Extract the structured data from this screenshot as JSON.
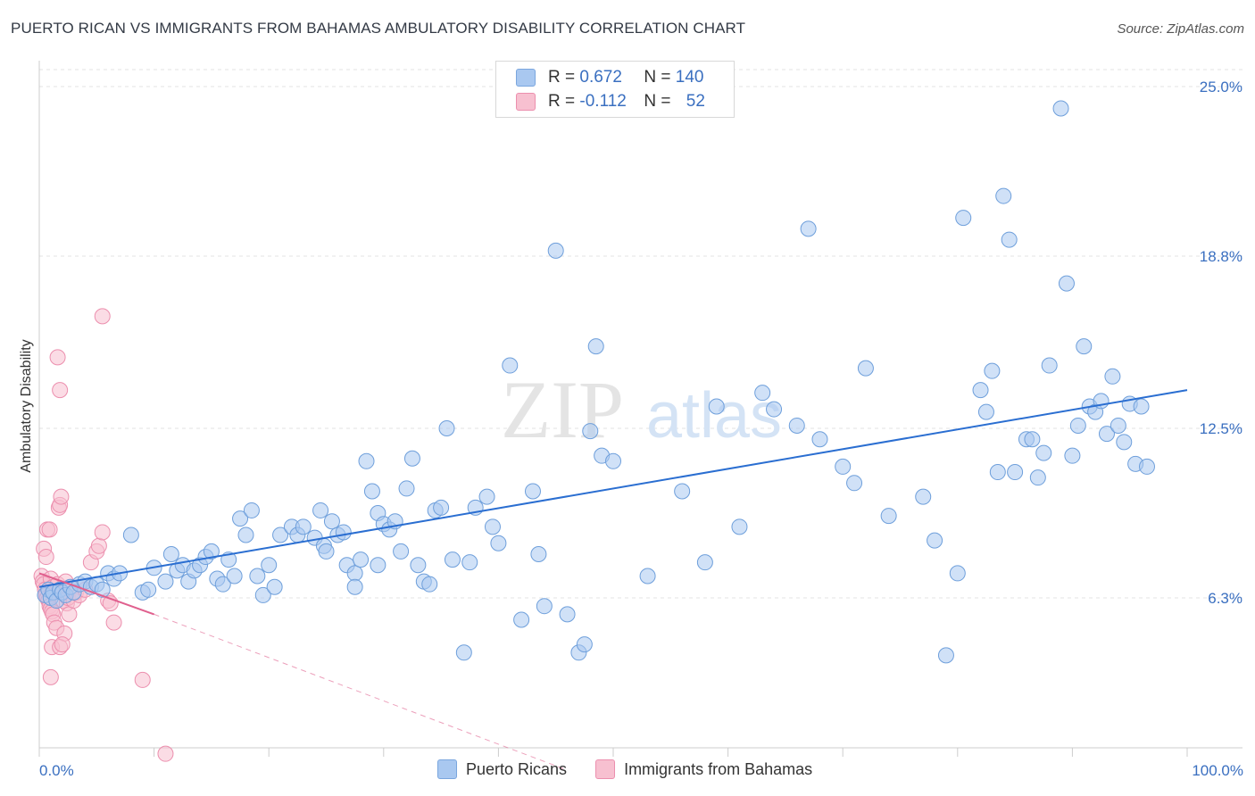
{
  "title": "PUERTO RICAN VS IMMIGRANTS FROM BAHAMAS AMBULATORY DISABILITY CORRELATION CHART",
  "source": "Source: ZipAtlas.com",
  "watermark": {
    "zip": "ZIP",
    "atlas": "atlas"
  },
  "legend_stats": [
    {
      "r_label": "R =",
      "r_value": "0.672",
      "n_label": "N =",
      "n_value": "140",
      "color": "#a9c8f0",
      "border": "#7aa6de"
    },
    {
      "r_label": "R =",
      "r_value": "-0.112",
      "n_label": "N =",
      "n_value": "52",
      "color": "#f7c0d0",
      "border": "#ec8fae"
    }
  ],
  "chart_data": {
    "type": "scatter",
    "title": "PUERTO RICAN VS IMMIGRANTS FROM BAHAMAS AMBULATORY DISABILITY CORRELATION CHART",
    "xlabel": "",
    "ylabel": "Ambulatory Disability",
    "xlim": [
      0,
      100
    ],
    "ylim": [
      0,
      26
    ],
    "x_tick_labels": [
      {
        "value": 0,
        "label": "0.0%"
      },
      {
        "value": 100,
        "label": "100.0%"
      }
    ],
    "y_ticks": [
      {
        "value": 6.3,
        "label": "6.3%"
      },
      {
        "value": 12.5,
        "label": "12.5%"
      },
      {
        "value": 18.8,
        "label": "18.8%"
      },
      {
        "value": 25.0,
        "label": "25.0%"
      }
    ],
    "grid": true,
    "series": [
      {
        "name": "Puerto Ricans",
        "color": "#a9c8f0",
        "stroke": "#6e9fdb",
        "trend": {
          "x0": 0.0,
          "y0": 6.7,
          "x1": 100.0,
          "y1": 13.9,
          "color": "#2a6ed1"
        },
        "points": [
          [
            0.5,
            6.4
          ],
          [
            0.8,
            6.6
          ],
          [
            1.0,
            6.3
          ],
          [
            1.2,
            6.5
          ],
          [
            1.5,
            6.2
          ],
          [
            1.8,
            6.6
          ],
          [
            2.0,
            6.5
          ],
          [
            2.3,
            6.4
          ],
          [
            2.7,
            6.7
          ],
          [
            3.0,
            6.5
          ],
          [
            3.5,
            6.8
          ],
          [
            4.0,
            6.9
          ],
          [
            4.5,
            6.7
          ],
          [
            5.0,
            6.8
          ],
          [
            5.5,
            6.6
          ],
          [
            6.0,
            7.2
          ],
          [
            6.5,
            7.0
          ],
          [
            7.0,
            7.2
          ],
          [
            8.0,
            8.6
          ],
          [
            9.0,
            6.5
          ],
          [
            9.5,
            6.6
          ],
          [
            10.0,
            7.4
          ],
          [
            11.0,
            6.9
          ],
          [
            11.5,
            7.9
          ],
          [
            12.0,
            7.3
          ],
          [
            12.5,
            7.5
          ],
          [
            13.0,
            6.9
          ],
          [
            13.5,
            7.3
          ],
          [
            14.0,
            7.5
          ],
          [
            14.5,
            7.8
          ],
          [
            15.0,
            8.0
          ],
          [
            15.5,
            7.0
          ],
          [
            16.0,
            6.8
          ],
          [
            16.5,
            7.7
          ],
          [
            17.0,
            7.1
          ],
          [
            17.5,
            9.2
          ],
          [
            18.0,
            8.6
          ],
          [
            18.5,
            9.5
          ],
          [
            19.0,
            7.1
          ],
          [
            19.5,
            6.4
          ],
          [
            20.0,
            7.5
          ],
          [
            20.5,
            6.7
          ],
          [
            21.0,
            8.6
          ],
          [
            22.0,
            8.9
          ],
          [
            22.5,
            8.6
          ],
          [
            23.0,
            8.9
          ],
          [
            24.0,
            8.5
          ],
          [
            24.5,
            9.5
          ],
          [
            24.8,
            8.2
          ],
          [
            25.0,
            8.0
          ],
          [
            25.5,
            9.1
          ],
          [
            26.0,
            8.6
          ],
          [
            26.5,
            8.7
          ],
          [
            26.8,
            7.5
          ],
          [
            27.5,
            7.2
          ],
          [
            27.5,
            6.7
          ],
          [
            28.0,
            7.7
          ],
          [
            28.5,
            11.3
          ],
          [
            29.0,
            10.2
          ],
          [
            29.5,
            9.4
          ],
          [
            29.5,
            7.5
          ],
          [
            30.0,
            9.0
          ],
          [
            30.5,
            8.8
          ],
          [
            31.0,
            9.1
          ],
          [
            31.5,
            8.0
          ],
          [
            32.0,
            10.3
          ],
          [
            32.5,
            11.4
          ],
          [
            33.0,
            7.5
          ],
          [
            33.5,
            6.9
          ],
          [
            34.0,
            6.8
          ],
          [
            34.5,
            9.5
          ],
          [
            35.0,
            9.6
          ],
          [
            35.5,
            12.5
          ],
          [
            36.0,
            7.7
          ],
          [
            37.0,
            4.3
          ],
          [
            37.5,
            7.6
          ],
          [
            38.0,
            9.6
          ],
          [
            39.0,
            10.0
          ],
          [
            39.5,
            8.9
          ],
          [
            40.0,
            8.3
          ],
          [
            41.0,
            14.8
          ],
          [
            42.0,
            5.5
          ],
          [
            43.0,
            10.2
          ],
          [
            43.5,
            7.9
          ],
          [
            44.0,
            6.0
          ],
          [
            45.0,
            19.0
          ],
          [
            46.0,
            5.7
          ],
          [
            47.0,
            4.3
          ],
          [
            47.5,
            4.6
          ],
          [
            48.0,
            12.4
          ],
          [
            48.5,
            15.5
          ],
          [
            49.0,
            11.5
          ],
          [
            50.0,
            11.3
          ],
          [
            53.0,
            7.1
          ],
          [
            56.0,
            10.2
          ],
          [
            58.0,
            7.6
          ],
          [
            59.0,
            13.3
          ],
          [
            61.0,
            8.9
          ],
          [
            63.0,
            13.8
          ],
          [
            64.0,
            13.2
          ],
          [
            66.0,
            12.6
          ],
          [
            67.0,
            19.8
          ],
          [
            68.0,
            12.1
          ],
          [
            70.0,
            11.1
          ],
          [
            71.0,
            10.5
          ],
          [
            72.0,
            14.7
          ],
          [
            74.0,
            9.3
          ],
          [
            77.0,
            10.0
          ],
          [
            78.0,
            8.4
          ],
          [
            79.0,
            4.2
          ],
          [
            80.0,
            7.2
          ],
          [
            80.5,
            20.2
          ],
          [
            82.0,
            13.9
          ],
          [
            82.5,
            13.1
          ],
          [
            83.0,
            14.6
          ],
          [
            83.5,
            10.9
          ],
          [
            84.0,
            21.0
          ],
          [
            84.5,
            19.4
          ],
          [
            85.0,
            10.9
          ],
          [
            86.0,
            12.1
          ],
          [
            86.5,
            12.1
          ],
          [
            87.0,
            10.7
          ],
          [
            87.5,
            11.6
          ],
          [
            88.0,
            14.8
          ],
          [
            89.0,
            24.2
          ],
          [
            89.5,
            17.8
          ],
          [
            90.0,
            11.5
          ],
          [
            90.5,
            12.6
          ],
          [
            91.0,
            15.5
          ],
          [
            91.5,
            13.3
          ],
          [
            92.0,
            13.1
          ],
          [
            92.5,
            13.5
          ],
          [
            93.0,
            12.3
          ],
          [
            93.5,
            14.4
          ],
          [
            94.0,
            12.6
          ],
          [
            94.5,
            12.0
          ],
          [
            95.0,
            13.4
          ],
          [
            95.5,
            11.2
          ],
          [
            96.0,
            13.3
          ],
          [
            96.5,
            11.1
          ]
        ]
      },
      {
        "name": "Immigrants from Bahamas",
        "color": "#f7c0d0",
        "stroke": "#ec8fae",
        "trend": {
          "x0": 0.0,
          "y0": 7.2,
          "x1": 10.0,
          "y1": 5.7,
          "color": "#e0608e",
          "dash_to": {
            "x": 46.0,
            "y": 0.0
          }
        },
        "points": [
          [
            0.2,
            7.1
          ],
          [
            0.3,
            6.9
          ],
          [
            0.4,
            6.8
          ],
          [
            0.5,
            6.6
          ],
          [
            0.6,
            6.4
          ],
          [
            0.7,
            6.3
          ],
          [
            0.8,
            6.2
          ],
          [
            0.9,
            6.0
          ],
          [
            1.0,
            5.9
          ],
          [
            1.1,
            5.8
          ],
          [
            1.2,
            5.7
          ],
          [
            1.3,
            5.4
          ],
          [
            0.4,
            8.1
          ],
          [
            0.6,
            7.8
          ],
          [
            0.7,
            8.8
          ],
          [
            0.9,
            8.8
          ],
          [
            1.0,
            7.0
          ],
          [
            1.2,
            6.7
          ],
          [
            1.4,
            6.5
          ],
          [
            1.5,
            5.2
          ],
          [
            1.6,
            6.8
          ],
          [
            1.7,
            9.6
          ],
          [
            1.8,
            9.7
          ],
          [
            1.9,
            10.0
          ],
          [
            2.0,
            6.5
          ],
          [
            2.1,
            6.2
          ],
          [
            2.2,
            5.0
          ],
          [
            2.3,
            6.9
          ],
          [
            2.4,
            6.1
          ],
          [
            2.5,
            6.3
          ],
          [
            2.6,
            5.7
          ],
          [
            2.8,
            6.7
          ],
          [
            3.0,
            6.2
          ],
          [
            3.2,
            6.5
          ],
          [
            3.5,
            6.4
          ],
          [
            4.0,
            6.6
          ],
          [
            4.5,
            7.6
          ],
          [
            5.0,
            8.0
          ],
          [
            5.2,
            8.2
          ],
          [
            5.5,
            8.7
          ],
          [
            6.0,
            6.2
          ],
          [
            6.2,
            6.1
          ],
          [
            6.5,
            5.4
          ],
          [
            1.6,
            15.1
          ],
          [
            1.8,
            13.9
          ],
          [
            5.5,
            16.6
          ],
          [
            1.0,
            3.4
          ],
          [
            1.1,
            4.5
          ],
          [
            1.8,
            4.5
          ],
          [
            2.0,
            4.6
          ],
          [
            9.0,
            3.3
          ],
          [
            11.0,
            0.6
          ]
        ]
      }
    ]
  }
}
